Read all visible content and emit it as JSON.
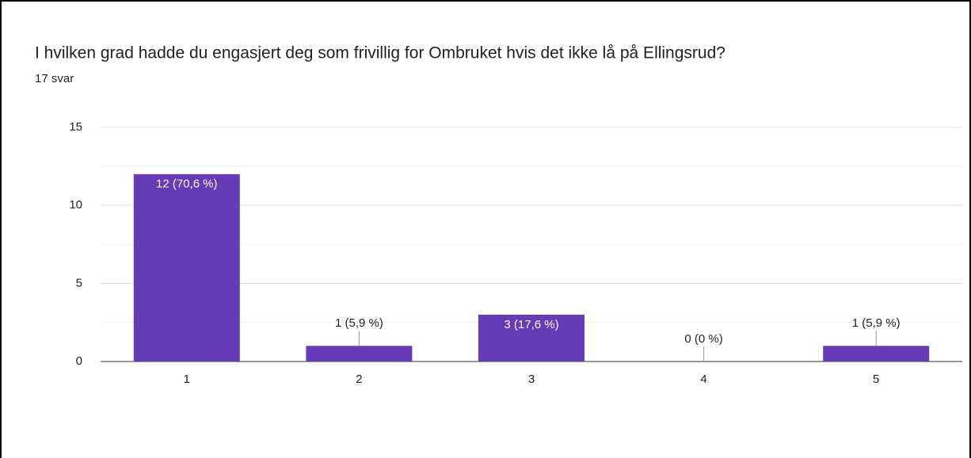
{
  "chart_data": {
    "type": "bar",
    "title": "I hvilken grad hadde du engasjert deg som frivillig for Ombruket hvis det ikke lå på Ellingsrud?",
    "subtitle": "17 svar",
    "categories": [
      "1",
      "2",
      "3",
      "4",
      "5"
    ],
    "values": [
      12,
      1,
      3,
      0,
      1
    ],
    "value_labels": [
      "12 (70,6 %)",
      "1 (5,9 %)",
      "3 (17,6 %)",
      "0 (0 %)",
      "1 (5,9 %)"
    ],
    "color": "#673ab7",
    "ylim": [
      0,
      15
    ],
    "yticks": [
      0,
      5,
      10,
      15
    ],
    "minor_yticks": [
      2.5,
      7.5,
      12.5
    ],
    "grid": true
  }
}
